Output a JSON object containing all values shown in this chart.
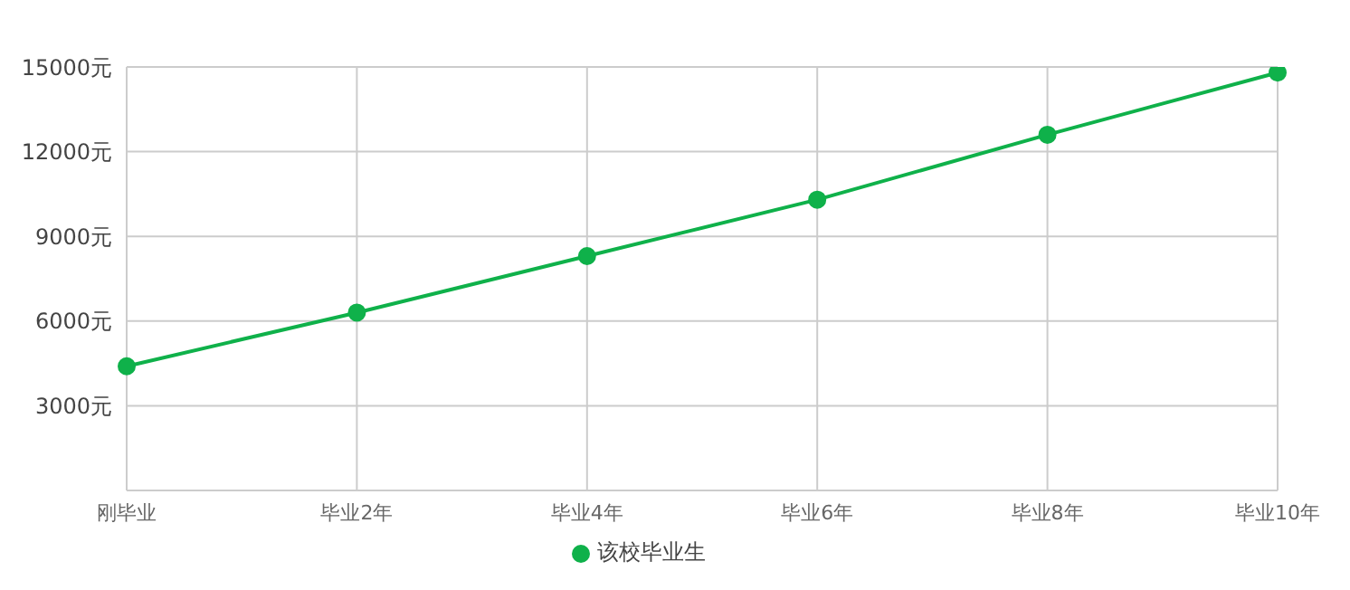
{
  "chart_data": {
    "type": "line",
    "categories": [
      "刚毕业",
      "毕业2年",
      "毕业4年",
      "毕业6年",
      "毕业8年",
      "毕业10年"
    ],
    "series": [
      {
        "name": "该校毕业生",
        "color": "#0fb14a",
        "values": [
          4400,
          6300,
          8300,
          10300,
          12600,
          14800
        ]
      }
    ],
    "ylim": [
      0,
      15000
    ],
    "yticks": [
      {
        "value": 3000,
        "label": "3000元"
      },
      {
        "value": 6000,
        "label": "6000元"
      },
      {
        "value": 9000,
        "label": "9000元"
      },
      {
        "value": 12000,
        "label": "12000元"
      },
      {
        "value": 15000,
        "label": "15000元"
      }
    ],
    "grid": true,
    "legend": "bottom",
    "marker": "circle",
    "line_style": "solid"
  }
}
